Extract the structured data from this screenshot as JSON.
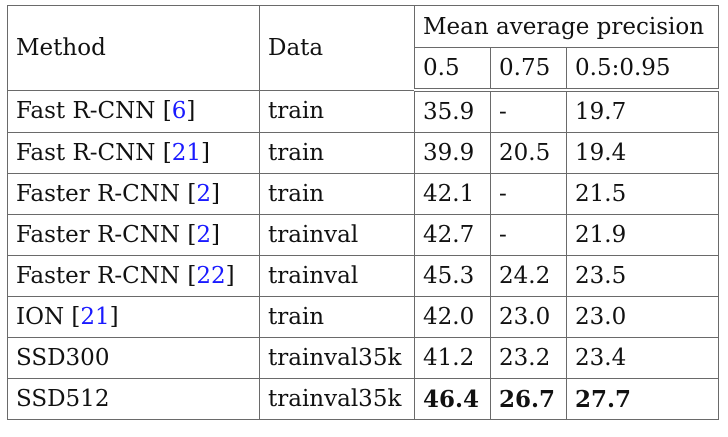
{
  "table": {
    "headers": {
      "method": "Method",
      "data": "Data",
      "map": "Mean average precision",
      "map_sub": [
        "0.5",
        "0.75",
        "0.5:0.95"
      ]
    },
    "rows": [
      {
        "method": "Fast R-CNN",
        "ref": "6",
        "data": "train",
        "ap50": "35.9",
        "ap75": "-",
        "ap": "19.7"
      },
      {
        "method": "Fast R-CNN",
        "ref": "21",
        "data": "train",
        "ap50": "39.9",
        "ap75": "20.5",
        "ap": "19.4"
      },
      {
        "method": "Faster R-CNN",
        "ref": "2",
        "data": "train",
        "ap50": "42.1",
        "ap75": "-",
        "ap": "21.5"
      },
      {
        "method": "Faster R-CNN",
        "ref": "2",
        "data": "trainval",
        "ap50": "42.7",
        "ap75": "-",
        "ap": "21.9"
      },
      {
        "method": "Faster R-CNN",
        "ref": "22",
        "data": "trainval",
        "ap50": "45.3",
        "ap75": "24.2",
        "ap": "23.5"
      },
      {
        "method": "ION",
        "ref": "21",
        "data": "train",
        "ap50": "42.0",
        "ap75": "23.0",
        "ap": "23.0"
      },
      {
        "method": "SSD300",
        "ref": null,
        "data": "trainval35k",
        "ap50": "41.2",
        "ap75": "23.2",
        "ap": "23.4"
      },
      {
        "method": "SSD512",
        "ref": null,
        "data": "trainval35k",
        "ap50": "46.4",
        "ap75": "26.7",
        "ap": "27.7"
      }
    ],
    "bold_row_index": 7
  }
}
